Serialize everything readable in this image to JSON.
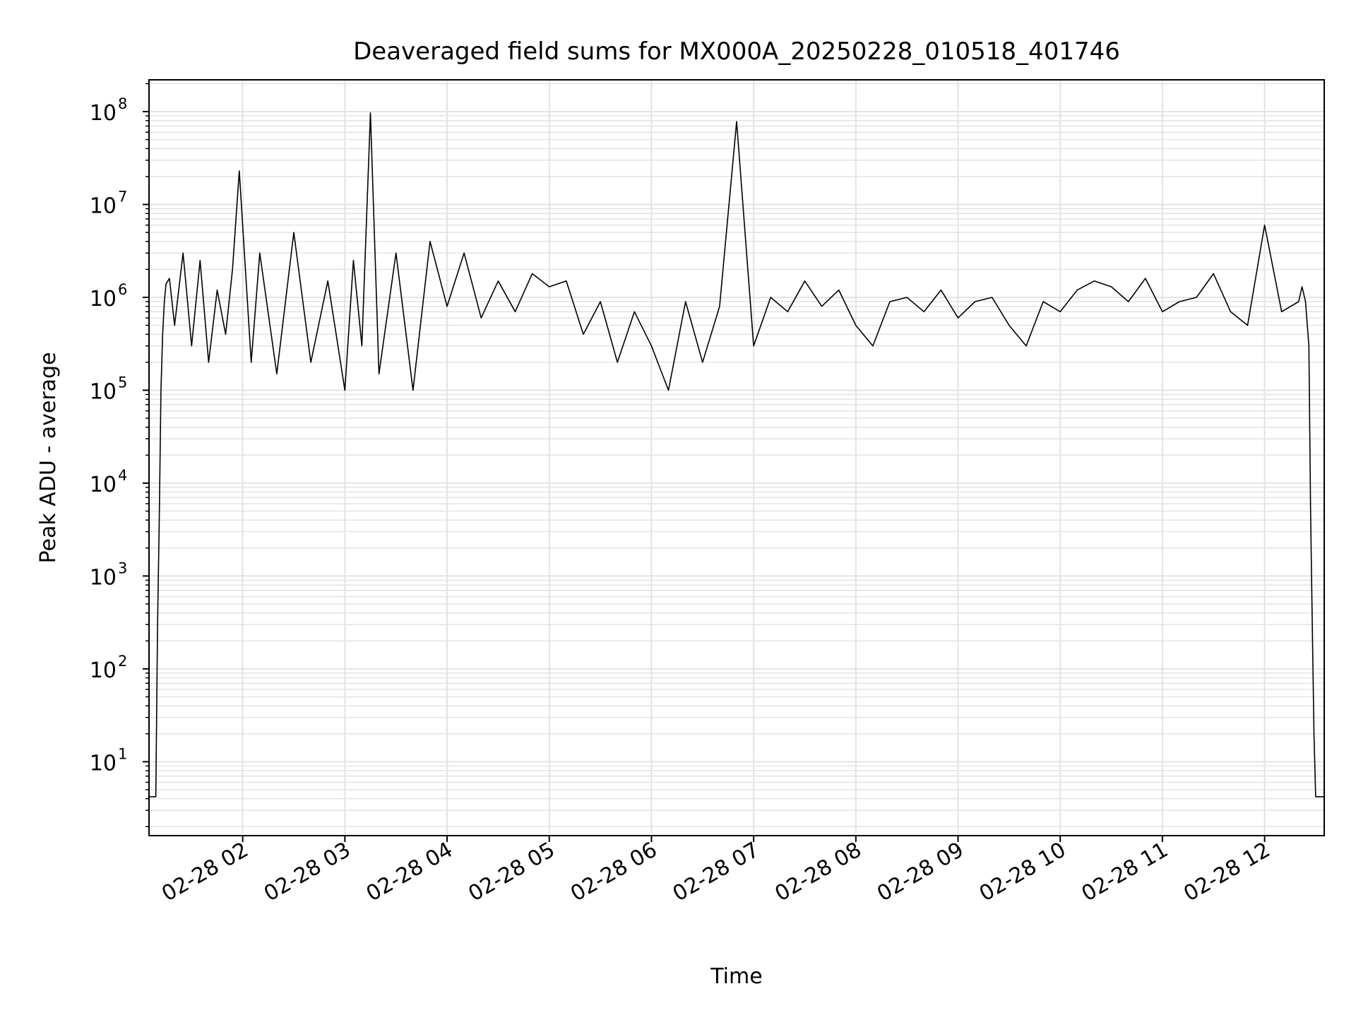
{
  "chart_data": {
    "type": "line",
    "title": "Deaveraged field sums for MX000A_20250228_010518_401746",
    "xlabel": "Time",
    "ylabel": "Peak ADU - average",
    "yscale": "log",
    "ylim": [
      1.6,
      220000000.0
    ],
    "xlim": [
      "2025-02-28 01:05",
      "2025-02-28 12:35"
    ],
    "grid": true,
    "grid_minor": true,
    "legend": "none",
    "line_color": "#000000",
    "grid_color": "#e3e3e3",
    "x_ticks": [
      {
        "label": "02-28 02",
        "time": "2025-02-28 02:00"
      },
      {
        "label": "02-28 03",
        "time": "2025-02-28 03:00"
      },
      {
        "label": "02-28 04",
        "time": "2025-02-28 04:00"
      },
      {
        "label": "02-28 05",
        "time": "2025-02-28 05:00"
      },
      {
        "label": "02-28 06",
        "time": "2025-02-28 06:00"
      },
      {
        "label": "02-28 07",
        "time": "2025-02-28 07:00"
      },
      {
        "label": "02-28 08",
        "time": "2025-02-28 08:00"
      },
      {
        "label": "02-28 09",
        "time": "2025-02-28 09:00"
      },
      {
        "label": "02-28 10",
        "time": "2025-02-28 10:00"
      },
      {
        "label": "02-28 11",
        "time": "2025-02-28 11:00"
      },
      {
        "label": "02-28 12",
        "time": "2025-02-28 12:00"
      }
    ],
    "y_ticks": [
      {
        "base": "10",
        "exp": "1",
        "value": 10
      },
      {
        "base": "10",
        "exp": "2",
        "value": 100
      },
      {
        "base": "10",
        "exp": "3",
        "value": 1000
      },
      {
        "base": "10",
        "exp": "4",
        "value": 10000
      },
      {
        "base": "10",
        "exp": "5",
        "value": 100000
      },
      {
        "base": "10",
        "exp": "6",
        "value": 1000000
      },
      {
        "base": "10",
        "exp": "7",
        "value": 10000000
      },
      {
        "base": "10",
        "exp": "8",
        "value": 100000000
      }
    ],
    "series": [
      {
        "x": [
          "2025-02-28 01:05",
          "2025-02-28 01:07",
          "2025-02-28 01:09",
          "2025-02-28 01:10",
          "2025-02-28 01:11",
          "2025-02-28 01:12",
          "2025-02-28 01:13",
          "2025-02-28 01:14",
          "2025-02-28 01:15",
          "2025-02-28 01:17",
          "2025-02-28 01:20",
          "2025-02-28 01:25",
          "2025-02-28 01:30",
          "2025-02-28 01:35",
          "2025-02-28 01:40",
          "2025-02-28 01:45",
          "2025-02-28 01:50",
          "2025-02-28 01:54",
          "2025-02-28 01:58",
          "2025-02-28 02:05",
          "2025-02-28 02:10",
          "2025-02-28 02:20",
          "2025-02-28 02:30",
          "2025-02-28 02:40",
          "2025-02-28 02:50",
          "2025-02-28 03:00",
          "2025-02-28 03:05",
          "2025-02-28 03:10",
          "2025-02-28 03:15",
          "2025-02-28 03:20",
          "2025-02-28 03:30",
          "2025-02-28 03:40",
          "2025-02-28 03:50",
          "2025-02-28 04:00",
          "2025-02-28 04:10",
          "2025-02-28 04:20",
          "2025-02-28 04:30",
          "2025-02-28 04:40",
          "2025-02-28 04:50",
          "2025-02-28 05:00",
          "2025-02-28 05:10",
          "2025-02-28 05:20",
          "2025-02-28 05:30",
          "2025-02-28 05:40",
          "2025-02-28 05:50",
          "2025-02-28 06:00",
          "2025-02-28 06:10",
          "2025-02-28 06:20",
          "2025-02-28 06:30",
          "2025-02-28 06:40",
          "2025-02-28 06:50",
          "2025-02-28 07:00",
          "2025-02-28 07:10",
          "2025-02-28 07:20",
          "2025-02-28 07:30",
          "2025-02-28 07:40",
          "2025-02-28 07:50",
          "2025-02-28 08:00",
          "2025-02-28 08:10",
          "2025-02-28 08:20",
          "2025-02-28 08:30",
          "2025-02-28 08:40",
          "2025-02-28 08:50",
          "2025-02-28 09:00",
          "2025-02-28 09:10",
          "2025-02-28 09:20",
          "2025-02-28 09:30",
          "2025-02-28 09:40",
          "2025-02-28 09:50",
          "2025-02-28 10:00",
          "2025-02-28 10:10",
          "2025-02-28 10:20",
          "2025-02-28 10:30",
          "2025-02-28 10:40",
          "2025-02-28 10:50",
          "2025-02-28 11:00",
          "2025-02-28 11:10",
          "2025-02-28 11:20",
          "2025-02-28 11:30",
          "2025-02-28 11:40",
          "2025-02-28 11:50",
          "2025-02-28 12:00",
          "2025-02-28 12:10",
          "2025-02-28 12:20",
          "2025-02-28 12:22",
          "2025-02-28 12:24",
          "2025-02-28 12:26",
          "2025-02-28 12:27",
          "2025-02-28 12:28",
          "2025-02-28 12:29",
          "2025-02-28 12:30",
          "2025-02-28 12:32",
          "2025-02-28 12:35"
        ],
        "y": [
          4.2,
          4.2,
          4.2,
          300,
          4000,
          100000,
          400000,
          900000,
          1400000,
          1600000,
          500000,
          3000000,
          300000,
          2500000,
          200000,
          1200000,
          400000,
          2000000,
          23000000,
          200000,
          3000000,
          150000,
          5000000,
          200000,
          1500000,
          100000,
          2500000,
          300000,
          97000000,
          150000,
          3000000,
          100000,
          4000000,
          800000,
          3000000,
          600000,
          1500000,
          700000,
          1800000,
          1300000,
          1500000,
          400000,
          900000,
          200000,
          700000,
          300000,
          100000,
          900000,
          200000,
          800000,
          78000000,
          300000,
          1000000,
          700000,
          1500000,
          800000,
          1200000,
          500000,
          300000,
          900000,
          1000000,
          700000,
          1200000,
          600000,
          900000,
          1000000,
          500000,
          300000,
          900000,
          700000,
          1200000,
          1500000,
          1300000,
          900000,
          1600000,
          700000,
          900000,
          1000000,
          1800000,
          700000,
          500000,
          6000000,
          700000,
          900000,
          1300000,
          900000,
          300000,
          5000,
          300,
          20,
          4.2,
          4.2,
          4.2
        ]
      }
    ]
  }
}
